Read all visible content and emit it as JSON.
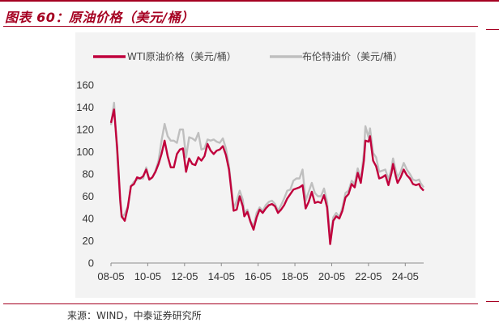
{
  "header": {
    "title": "图表 60：原油价格（美元/桶）"
  },
  "footer": {
    "source": "来源：WIND，中泰证券研究所"
  },
  "colors": {
    "accent": "#a50021",
    "wti": "#c0003c",
    "brent": "#bfbfbf",
    "panel": "#f3f3f3"
  },
  "chart_data": {
    "type": "line",
    "title": "",
    "xlabel": "",
    "ylabel": "",
    "ylim": [
      0,
      160
    ],
    "yticks": [
      "0",
      "20",
      "40",
      "60",
      "80",
      "100",
      "120",
      "140",
      "160"
    ],
    "xlim": [
      "2008-05",
      "2025-05"
    ],
    "xticks": [
      "08-05",
      "10-05",
      "12-05",
      "14-05",
      "16-05",
      "18-05",
      "20-05",
      "22-05",
      "24-05"
    ],
    "legend_position": "top",
    "grid": false,
    "series": [
      {
        "name": "WTI原油价格（美元/桶）",
        "color": "#c0003c",
        "points": [
          [
            "2008-05",
            126
          ],
          [
            "2008-07",
            138
          ],
          [
            "2008-09",
            104
          ],
          [
            "2008-11",
            57
          ],
          [
            "2008-12",
            42
          ],
          [
            "2009-02",
            38
          ],
          [
            "2009-04",
            50
          ],
          [
            "2009-06",
            69
          ],
          [
            "2009-08",
            71
          ],
          [
            "2009-10",
            77
          ],
          [
            "2009-12",
            76
          ],
          [
            "2010-02",
            78
          ],
          [
            "2010-04",
            84
          ],
          [
            "2010-06",
            75
          ],
          [
            "2010-08",
            77
          ],
          [
            "2010-10",
            82
          ],
          [
            "2010-12",
            89
          ],
          [
            "2011-02",
            98
          ],
          [
            "2011-04",
            110
          ],
          [
            "2011-06",
            96
          ],
          [
            "2011-08",
            86
          ],
          [
            "2011-10",
            86
          ],
          [
            "2011-12",
            98
          ],
          [
            "2012-02",
            102
          ],
          [
            "2012-04",
            103
          ],
          [
            "2012-06",
            82
          ],
          [
            "2012-08",
            94
          ],
          [
            "2012-10",
            89
          ],
          [
            "2012-12",
            88
          ],
          [
            "2013-02",
            95
          ],
          [
            "2013-04",
            92
          ],
          [
            "2013-06",
            96
          ],
          [
            "2013-08",
            107
          ],
          [
            "2013-10",
            101
          ],
          [
            "2013-12",
            98
          ],
          [
            "2014-02",
            101
          ],
          [
            "2014-04",
            102
          ],
          [
            "2014-06",
            105
          ],
          [
            "2014-08",
            97
          ],
          [
            "2014-10",
            84
          ],
          [
            "2014-12",
            59
          ],
          [
            "2015-01",
            47
          ],
          [
            "2015-03",
            48
          ],
          [
            "2015-05",
            60
          ],
          [
            "2015-07",
            51
          ],
          [
            "2015-08",
            42
          ],
          [
            "2015-10",
            46
          ],
          [
            "2015-12",
            37
          ],
          [
            "2016-02",
            30
          ],
          [
            "2016-04",
            41
          ],
          [
            "2016-06",
            48
          ],
          [
            "2016-08",
            45
          ],
          [
            "2016-10",
            49
          ],
          [
            "2016-12",
            52
          ],
          [
            "2017-02",
            53
          ],
          [
            "2017-04",
            51
          ],
          [
            "2017-06",
            45
          ],
          [
            "2017-08",
            48
          ],
          [
            "2017-10",
            52
          ],
          [
            "2017-12",
            58
          ],
          [
            "2018-02",
            62
          ],
          [
            "2018-04",
            66
          ],
          [
            "2018-06",
            67
          ],
          [
            "2018-08",
            68
          ],
          [
            "2018-10",
            70
          ],
          [
            "2018-12",
            49
          ],
          [
            "2019-02",
            55
          ],
          [
            "2019-04",
            64
          ],
          [
            "2019-06",
            54
          ],
          [
            "2019-08",
            55
          ],
          [
            "2019-10",
            54
          ],
          [
            "2019-12",
            61
          ],
          [
            "2020-02",
            50
          ],
          [
            "2020-04",
            17
          ],
          [
            "2020-06",
            38
          ],
          [
            "2020-08",
            42
          ],
          [
            "2020-10",
            40
          ],
          [
            "2020-12",
            47
          ],
          [
            "2021-02",
            59
          ],
          [
            "2021-04",
            62
          ],
          [
            "2021-06",
            71
          ],
          [
            "2021-08",
            68
          ],
          [
            "2021-10",
            81
          ],
          [
            "2021-12",
            72
          ],
          [
            "2022-02",
            92
          ],
          [
            "2022-03",
            110
          ],
          [
            "2022-05",
            109
          ],
          [
            "2022-06",
            114
          ],
          [
            "2022-08",
            92
          ],
          [
            "2022-10",
            87
          ],
          [
            "2022-12",
            76
          ],
          [
            "2023-02",
            77
          ],
          [
            "2023-04",
            79
          ],
          [
            "2023-06",
            70
          ],
          [
            "2023-08",
            81
          ],
          [
            "2023-09",
            89
          ],
          [
            "2023-11",
            77
          ],
          [
            "2023-12",
            72
          ],
          [
            "2024-02",
            77
          ],
          [
            "2024-04",
            84
          ],
          [
            "2024-06",
            79
          ],
          [
            "2024-08",
            76
          ],
          [
            "2024-10",
            71
          ],
          [
            "2024-12",
            70
          ],
          [
            "2025-02",
            71
          ],
          [
            "2025-03",
            68
          ],
          [
            "2025-05",
            65
          ]
        ]
      },
      {
        "name": "布伦特油价（美元/桶）",
        "color": "#bfbfbf",
        "points": [
          [
            "2008-05",
            124
          ],
          [
            "2008-07",
            144
          ],
          [
            "2008-09",
            98
          ],
          [
            "2008-11",
            54
          ],
          [
            "2008-12",
            41
          ],
          [
            "2009-02",
            44
          ],
          [
            "2009-04",
            51
          ],
          [
            "2009-06",
            69
          ],
          [
            "2009-08",
            73
          ],
          [
            "2009-10",
            75
          ],
          [
            "2009-12",
            76
          ],
          [
            "2010-02",
            76
          ],
          [
            "2010-04",
            86
          ],
          [
            "2010-06",
            75
          ],
          [
            "2010-08",
            77
          ],
          [
            "2010-10",
            83
          ],
          [
            "2010-12",
            92
          ],
          [
            "2011-02",
            110
          ],
          [
            "2011-04",
            125
          ],
          [
            "2011-06",
            114
          ],
          [
            "2011-08",
            110
          ],
          [
            "2011-10",
            110
          ],
          [
            "2011-12",
            108
          ],
          [
            "2012-02",
            120
          ],
          [
            "2012-04",
            120
          ],
          [
            "2012-06",
            95
          ],
          [
            "2012-08",
            113
          ],
          [
            "2012-10",
            112
          ],
          [
            "2012-12",
            110
          ],
          [
            "2013-02",
            117
          ],
          [
            "2013-04",
            102
          ],
          [
            "2013-06",
            103
          ],
          [
            "2013-08",
            111
          ],
          [
            "2013-10",
            110
          ],
          [
            "2013-12",
            111
          ],
          [
            "2014-02",
            109
          ],
          [
            "2014-04",
            108
          ],
          [
            "2014-06",
            112
          ],
          [
            "2014-08",
            103
          ],
          [
            "2014-10",
            87
          ],
          [
            "2014-12",
            62
          ],
          [
            "2015-01",
            49
          ],
          [
            "2015-03",
            56
          ],
          [
            "2015-05",
            65
          ],
          [
            "2015-07",
            57
          ],
          [
            "2015-08",
            45
          ],
          [
            "2015-10",
            48
          ],
          [
            "2015-12",
            38
          ],
          [
            "2016-02",
            33
          ],
          [
            "2016-04",
            45
          ],
          [
            "2016-06",
            50
          ],
          [
            "2016-08",
            47
          ],
          [
            "2016-10",
            52
          ],
          [
            "2016-12",
            55
          ],
          [
            "2017-02",
            56
          ],
          [
            "2017-04",
            53
          ],
          [
            "2017-06",
            47
          ],
          [
            "2017-08",
            52
          ],
          [
            "2017-10",
            58
          ],
          [
            "2017-12",
            65
          ],
          [
            "2018-02",
            66
          ],
          [
            "2018-04",
            74
          ],
          [
            "2018-06",
            76
          ],
          [
            "2018-08",
            76
          ],
          [
            "2018-10",
            84
          ],
          [
            "2018-12",
            56
          ],
          [
            "2019-02",
            64
          ],
          [
            "2019-04",
            72
          ],
          [
            "2019-06",
            63
          ],
          [
            "2019-08",
            60
          ],
          [
            "2019-10",
            60
          ],
          [
            "2019-12",
            67
          ],
          [
            "2020-02",
            55
          ],
          [
            "2020-04",
            22
          ],
          [
            "2020-06",
            41
          ],
          [
            "2020-08",
            45
          ],
          [
            "2020-10",
            41
          ],
          [
            "2020-12",
            50
          ],
          [
            "2021-02",
            63
          ],
          [
            "2021-04",
            65
          ],
          [
            "2021-06",
            74
          ],
          [
            "2021-08",
            71
          ],
          [
            "2021-10",
            85
          ],
          [
            "2021-12",
            75
          ],
          [
            "2022-02",
            99
          ],
          [
            "2022-03",
            123
          ],
          [
            "2022-05",
            113
          ],
          [
            "2022-06",
            121
          ],
          [
            "2022-08",
            99
          ],
          [
            "2022-10",
            95
          ],
          [
            "2022-12",
            82
          ],
          [
            "2023-02",
            83
          ],
          [
            "2023-04",
            84
          ],
          [
            "2023-06",
            75
          ],
          [
            "2023-08",
            85
          ],
          [
            "2023-09",
            94
          ],
          [
            "2023-11",
            82
          ],
          [
            "2023-12",
            77
          ],
          [
            "2024-02",
            82
          ],
          [
            "2024-04",
            90
          ],
          [
            "2024-06",
            84
          ],
          [
            "2024-08",
            80
          ],
          [
            "2024-10",
            75
          ],
          [
            "2024-12",
            74
          ],
          [
            "2025-02",
            75
          ],
          [
            "2025-03",
            72
          ],
          [
            "2025-05",
            68
          ]
        ]
      }
    ]
  }
}
